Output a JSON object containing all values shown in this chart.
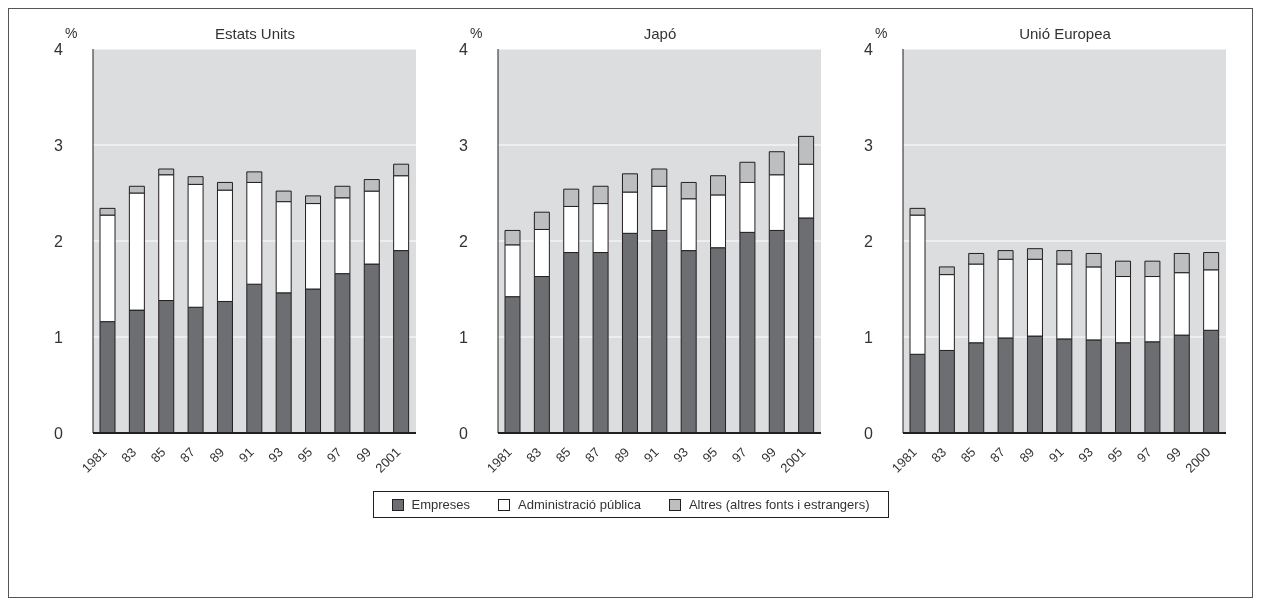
{
  "chart_data": [
    {
      "type": "bar",
      "title": "Estats Units",
      "ylabel": "%",
      "stacked": true,
      "grid": "y",
      "ylim": [
        0,
        4
      ],
      "yticks": [
        0,
        1,
        2,
        3,
        4
      ],
      "categories": [
        "1981",
        "83",
        "85",
        "87",
        "89",
        "91",
        "93",
        "95",
        "97",
        "99",
        "2001"
      ],
      "series": [
        {
          "color": "#6d6e71",
          "values": [
            1.16,
            1.28,
            1.38,
            1.31,
            1.37,
            1.55,
            1.46,
            1.5,
            1.66,
            1.76,
            1.9
          ]
        },
        {
          "color": "#ffffff",
          "values": [
            1.11,
            1.22,
            1.31,
            1.28,
            1.16,
            1.06,
            0.95,
            0.89,
            0.79,
            0.76,
            0.78
          ]
        },
        {
          "color": "#bcbec0",
          "values": [
            0.07,
            0.07,
            0.06,
            0.08,
            0.08,
            0.11,
            0.11,
            0.08,
            0.12,
            0.12,
            0.12
          ]
        }
      ]
    },
    {
      "type": "bar",
      "title": "Japó",
      "ylabel": "%",
      "stacked": true,
      "grid": "y",
      "ylim": [
        0,
        4
      ],
      "yticks": [
        0,
        1,
        2,
        3,
        4
      ],
      "legend": "bottom",
      "categories": [
        "1981",
        "83",
        "85",
        "87",
        "89",
        "91",
        "93",
        "95",
        "97",
        "99",
        "2001"
      ],
      "series": [
        {
          "name": "Empreses",
          "color": "#6d6e71",
          "values": [
            1.42,
            1.63,
            1.88,
            1.88,
            2.08,
            2.11,
            1.9,
            1.93,
            2.09,
            2.11,
            2.24
          ]
        },
        {
          "name": "Administració pública",
          "color": "#ffffff",
          "values": [
            0.54,
            0.49,
            0.48,
            0.51,
            0.43,
            0.46,
            0.54,
            0.55,
            0.52,
            0.58,
            0.56
          ]
        },
        {
          "name": "Altres (altres fonts i estrangers)",
          "color": "#bcbec0",
          "values": [
            0.15,
            0.18,
            0.18,
            0.18,
            0.19,
            0.18,
            0.17,
            0.2,
            0.21,
            0.24,
            0.29
          ]
        }
      ]
    },
    {
      "type": "bar",
      "title": "Unió Europea",
      "ylabel": "%",
      "stacked": true,
      "grid": "y",
      "ylim": [
        0,
        4
      ],
      "yticks": [
        0,
        1,
        2,
        3,
        4
      ],
      "categories": [
        "1981",
        "83",
        "85",
        "87",
        "89",
        "91",
        "93",
        "95",
        "97",
        "99",
        "2000"
      ],
      "series": [
        {
          "color": "#6d6e71",
          "values": [
            0.82,
            0.86,
            0.94,
            0.99,
            1.01,
            0.98,
            0.97,
            0.94,
            0.95,
            1.02,
            1.07
          ]
        },
        {
          "color": "#ffffff",
          "values": [
            1.45,
            0.79,
            0.82,
            0.82,
            0.8,
            0.78,
            0.76,
            0.69,
            0.68,
            0.65,
            0.63
          ]
        },
        {
          "color": "#bcbec0",
          "values": [
            0.07,
            0.08,
            0.11,
            0.09,
            0.11,
            0.14,
            0.14,
            0.16,
            0.16,
            0.2,
            0.18
          ]
        }
      ]
    }
  ]
}
